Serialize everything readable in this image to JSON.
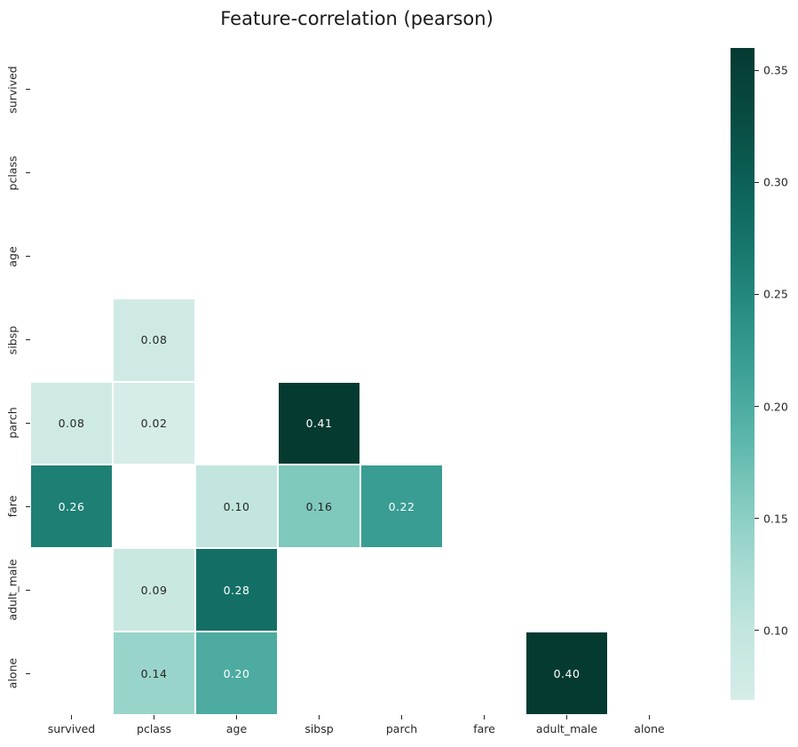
{
  "chart_data": {
    "type": "heatmap",
    "title": "Feature-correlation (pearson)",
    "categories": [
      "survived",
      "pclass",
      "age",
      "sibsp",
      "parch",
      "fare",
      "adult_male",
      "alone"
    ],
    "matrix": [
      [
        null,
        null,
        null,
        null,
        null,
        null,
        null,
        null
      ],
      [
        null,
        null,
        null,
        null,
        null,
        null,
        null,
        null
      ],
      [
        null,
        null,
        null,
        null,
        null,
        null,
        null,
        null
      ],
      [
        null,
        0.08,
        null,
        null,
        null,
        null,
        null,
        null
      ],
      [
        0.08,
        0.02,
        null,
        0.41,
        null,
        null,
        null,
        null
      ],
      [
        0.26,
        null,
        0.1,
        0.16,
        0.22,
        null,
        null,
        null
      ],
      [
        null,
        0.09,
        0.28,
        null,
        null,
        null,
        null,
        null
      ],
      [
        null,
        0.14,
        0.2,
        null,
        null,
        null,
        0.4,
        null
      ]
    ],
    "annotation_format_decimals": 2,
    "colorbar": {
      "ticks": [
        0.35,
        0.3,
        0.25,
        0.2,
        0.15,
        0.1
      ],
      "tick_labels": [
        "0.35",
        "0.30",
        "0.25",
        "0.20",
        "0.15",
        "0.10"
      ],
      "vmin": 0.069,
      "vmax": 0.36
    },
    "colors": {
      "background": "#ffffff",
      "annotation_dark": "#262626",
      "annotation_light": "#ffffff",
      "tick_color": "#262626",
      "title_color": "#1a1a1a",
      "colormap_stops": [
        [
          0.0,
          "#d5ece8"
        ],
        [
          0.1,
          "#c4e6e0"
        ],
        [
          0.2,
          "#a8dbd2"
        ],
        [
          0.3,
          "#84cbbf"
        ],
        [
          0.4,
          "#5cb6ab"
        ],
        [
          0.5,
          "#3ea197"
        ],
        [
          0.6,
          "#288c82"
        ],
        [
          0.7,
          "#16756b"
        ],
        [
          0.8,
          "#0b5f56"
        ],
        [
          0.9,
          "#084a40"
        ],
        [
          1.0,
          "#053a31"
        ]
      ]
    },
    "legend_position": "right",
    "grid": false
  }
}
